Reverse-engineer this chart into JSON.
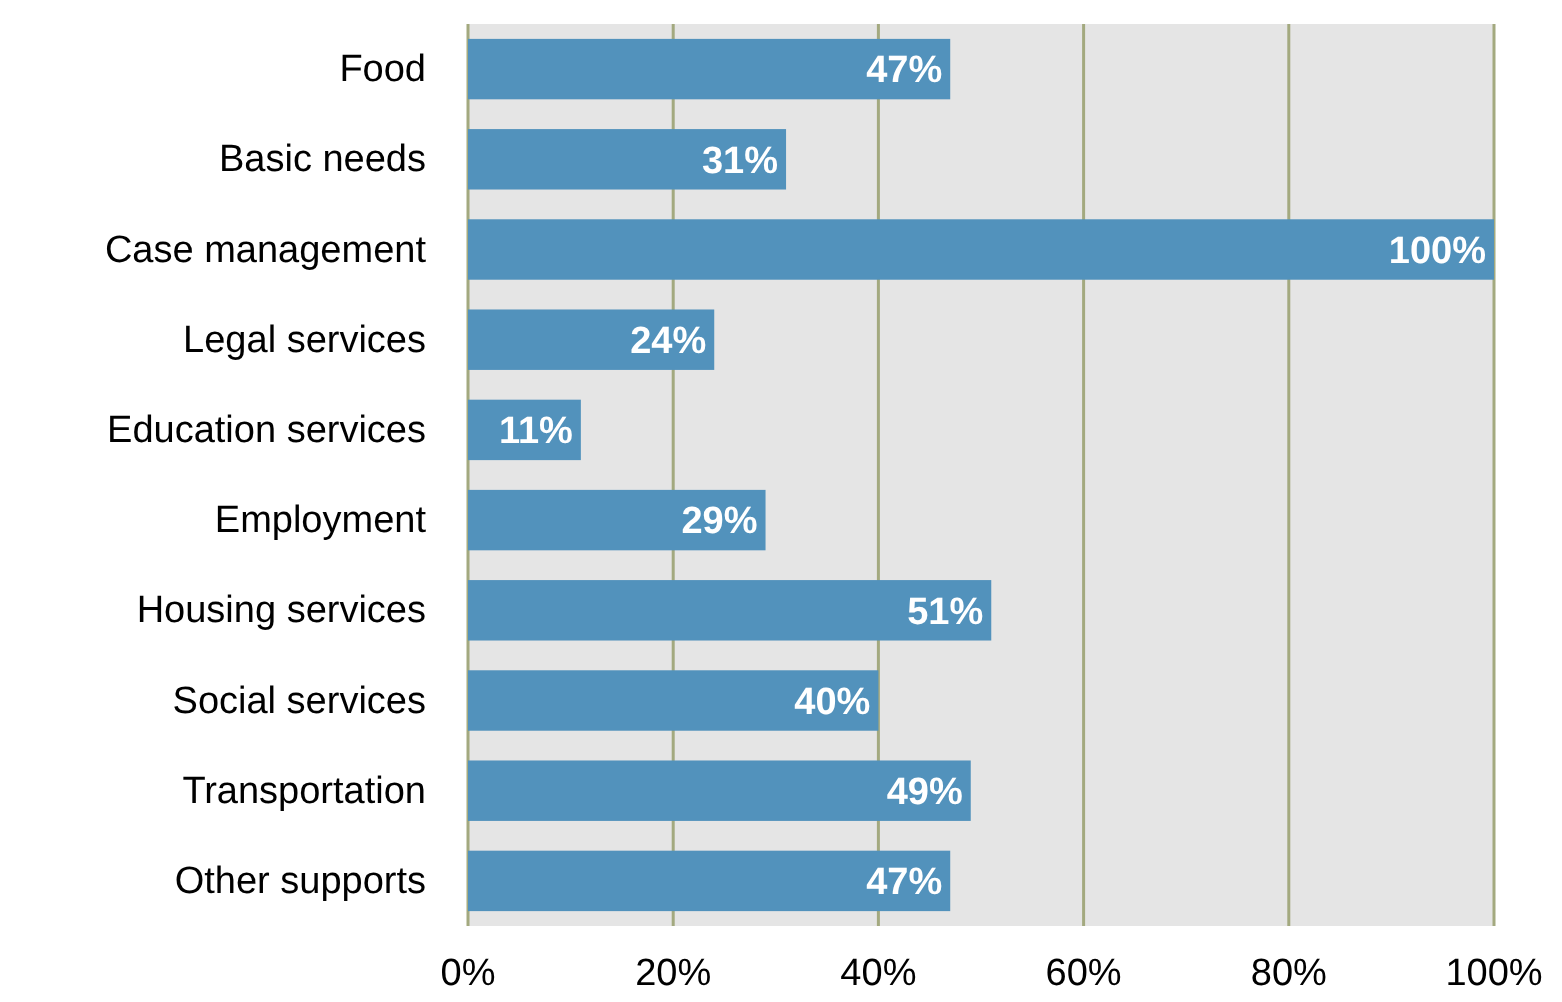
{
  "chart_data": {
    "type": "bar",
    "orientation": "horizontal",
    "categories": [
      "Food",
      "Basic needs",
      "Case management",
      "Legal services",
      "Education services",
      "Employment",
      "Housing services",
      "Social services",
      "Transportation",
      "Other supports"
    ],
    "values": [
      47,
      31,
      100,
      24,
      11,
      29,
      51,
      40,
      49,
      47
    ],
    "value_labels": [
      "47%",
      "31%",
      "100%",
      "24%",
      "11%",
      "29%",
      "51%",
      "40%",
      "49%",
      "47%"
    ],
    "color": "#5292bc",
    "xlim": [
      0,
      100
    ],
    "xticks": [
      {
        "value": 0,
        "label": "0%"
      },
      {
        "value": 20,
        "label": "20%"
      },
      {
        "value": 40,
        "label": "40%"
      },
      {
        "value": 60,
        "label": "60%"
      },
      {
        "value": 80,
        "label": "80%"
      },
      {
        "value": 100,
        "label": "100%"
      }
    ],
    "grid": "x"
  }
}
